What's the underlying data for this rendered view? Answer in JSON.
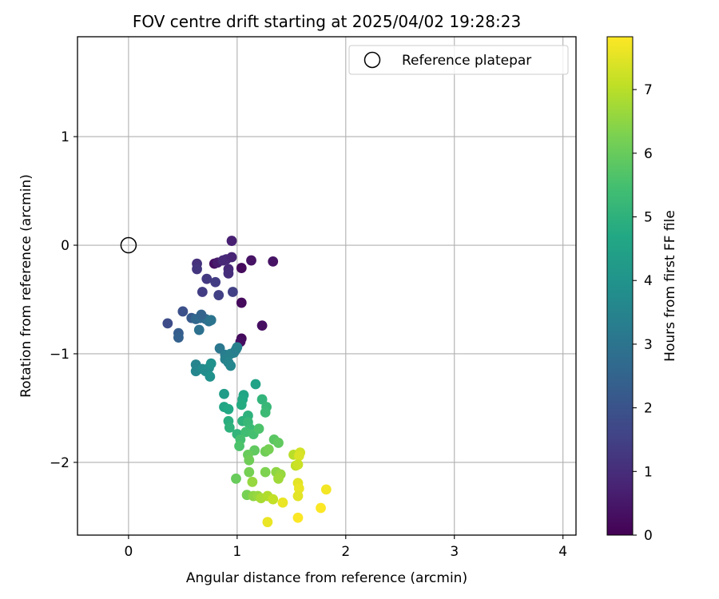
{
  "chart_data": {
    "type": "scatter",
    "title": "FOV centre drift starting at 2025/04/02 19:28:23",
    "xlabel": "Angular distance from reference (arcmin)",
    "ylabel": "Rotation from reference (arcmin)",
    "xlim": [
      -0.47,
      4.12
    ],
    "ylim": [
      -2.67,
      1.92
    ],
    "xticks": [
      0,
      1,
      2,
      3,
      4
    ],
    "yticks": [
      -2,
      -1,
      0,
      1
    ],
    "grid": true,
    "legend": {
      "position": "top-right",
      "entries": [
        "Reference platepar"
      ]
    },
    "reference": {
      "name": "Reference platepar",
      "x": 0.0,
      "y": 0.0,
      "marker": "open-circle"
    },
    "colorbar": {
      "label": "Hours from first FF file",
      "colormap": "viridis",
      "range": [
        0,
        7.83
      ],
      "ticks": [
        0,
        1,
        2,
        3,
        4,
        5,
        6,
        7
      ]
    },
    "points": [
      {
        "x": 0.95,
        "y": 0.04,
        "h": 0.7
      },
      {
        "x": 0.79,
        "y": -0.17,
        "h": 0.3
      },
      {
        "x": 0.82,
        "y": -0.16,
        "h": 0.6
      },
      {
        "x": 0.87,
        "y": -0.14,
        "h": 0.9
      },
      {
        "x": 0.9,
        "y": -0.13,
        "h": 0.9
      },
      {
        "x": 0.95,
        "y": -0.11,
        "h": 0.8
      },
      {
        "x": 1.13,
        "y": -0.14,
        "h": 0.4
      },
      {
        "x": 1.33,
        "y": -0.15,
        "h": 0.4
      },
      {
        "x": 1.04,
        "y": -0.21,
        "h": 0.2
      },
      {
        "x": 0.92,
        "y": -0.22,
        "h": 0.9
      },
      {
        "x": 0.92,
        "y": -0.26,
        "h": 1.0
      },
      {
        "x": 0.63,
        "y": -0.17,
        "h": 1.1
      },
      {
        "x": 0.63,
        "y": -0.22,
        "h": 1.2
      },
      {
        "x": 0.72,
        "y": -0.31,
        "h": 1.3
      },
      {
        "x": 0.8,
        "y": -0.34,
        "h": 1.4
      },
      {
        "x": 0.68,
        "y": -0.43,
        "h": 1.4
      },
      {
        "x": 0.83,
        "y": -0.46,
        "h": 1.5
      },
      {
        "x": 0.96,
        "y": -0.43,
        "h": 1.5
      },
      {
        "x": 1.04,
        "y": -0.53,
        "h": 0.2
      },
      {
        "x": 1.23,
        "y": -0.74,
        "h": 0.3
      },
      {
        "x": 1.04,
        "y": -0.86,
        "h": 0.2
      },
      {
        "x": 1.03,
        "y": -0.89,
        "h": 0.3
      },
      {
        "x": 0.36,
        "y": -0.72,
        "h": 1.8
      },
      {
        "x": 0.5,
        "y": -0.61,
        "h": 1.9
      },
      {
        "x": 0.58,
        "y": -0.67,
        "h": 2.2
      },
      {
        "x": 0.62,
        "y": -0.68,
        "h": 2.6
      },
      {
        "x": 0.66,
        "y": -0.67,
        "h": 2.7
      },
      {
        "x": 0.71,
        "y": -0.68,
        "h": 2.8
      },
      {
        "x": 0.74,
        "y": -0.7,
        "h": 2.9
      },
      {
        "x": 0.76,
        "y": -0.69,
        "h": 3.0
      },
      {
        "x": 0.67,
        "y": -0.64,
        "h": 2.5
      },
      {
        "x": 0.46,
        "y": -0.81,
        "h": 2.3
      },
      {
        "x": 0.46,
        "y": -0.85,
        "h": 2.4
      },
      {
        "x": 0.65,
        "y": -0.78,
        "h": 2.9
      },
      {
        "x": 0.84,
        "y": -0.95,
        "h": 3.1
      },
      {
        "x": 0.89,
        "y": -1.01,
        "h": 3.3
      },
      {
        "x": 0.89,
        "y": -1.05,
        "h": 3.4
      },
      {
        "x": 0.94,
        "y": -1.0,
        "h": 3.4
      },
      {
        "x": 0.97,
        "y": -0.99,
        "h": 3.4
      },
      {
        "x": 0.99,
        "y": -0.96,
        "h": 3.3
      },
      {
        "x": 1.0,
        "y": -0.94,
        "h": 3.4
      },
      {
        "x": 0.92,
        "y": -1.08,
        "h": 3.5
      },
      {
        "x": 0.94,
        "y": -1.11,
        "h": 3.6
      },
      {
        "x": 0.62,
        "y": -1.1,
        "h": 3.5
      },
      {
        "x": 0.62,
        "y": -1.16,
        "h": 3.6
      },
      {
        "x": 0.68,
        "y": -1.14,
        "h": 3.7
      },
      {
        "x": 0.71,
        "y": -1.16,
        "h": 3.8
      },
      {
        "x": 0.74,
        "y": -1.13,
        "h": 3.8
      },
      {
        "x": 0.76,
        "y": -1.09,
        "h": 3.9
      },
      {
        "x": 0.75,
        "y": -1.21,
        "h": 3.9
      },
      {
        "x": 0.88,
        "y": -1.37,
        "h": 4.3
      },
      {
        "x": 1.17,
        "y": -1.28,
        "h": 4.5
      },
      {
        "x": 1.06,
        "y": -1.38,
        "h": 4.6
      },
      {
        "x": 1.05,
        "y": -1.42,
        "h": 4.7
      },
      {
        "x": 1.04,
        "y": -1.47,
        "h": 4.8
      },
      {
        "x": 0.88,
        "y": -1.49,
        "h": 4.6
      },
      {
        "x": 0.92,
        "y": -1.51,
        "h": 4.7
      },
      {
        "x": 1.23,
        "y": -1.42,
        "h": 5.1
      },
      {
        "x": 1.27,
        "y": -1.49,
        "h": 5.2
      },
      {
        "x": 1.26,
        "y": -1.54,
        "h": 5.3
      },
      {
        "x": 1.1,
        "y": -1.57,
        "h": 5.0
      },
      {
        "x": 1.05,
        "y": -1.62,
        "h": 5.0
      },
      {
        "x": 0.92,
        "y": -1.62,
        "h": 4.9
      },
      {
        "x": 0.93,
        "y": -1.68,
        "h": 5.0
      },
      {
        "x": 1.0,
        "y": -1.74,
        "h": 5.1
      },
      {
        "x": 1.1,
        "y": -1.63,
        "h": 5.2
      },
      {
        "x": 1.12,
        "y": -1.69,
        "h": 5.3
      },
      {
        "x": 1.08,
        "y": -1.72,
        "h": 5.4
      },
      {
        "x": 1.15,
        "y": -1.74,
        "h": 5.5
      },
      {
        "x": 1.2,
        "y": -1.69,
        "h": 5.6
      },
      {
        "x": 1.03,
        "y": -1.79,
        "h": 5.5
      },
      {
        "x": 1.02,
        "y": -1.85,
        "h": 5.6
      },
      {
        "x": 1.34,
        "y": -1.79,
        "h": 5.8
      },
      {
        "x": 1.38,
        "y": -1.82,
        "h": 5.9
      },
      {
        "x": 1.16,
        "y": -1.89,
        "h": 5.9
      },
      {
        "x": 1.1,
        "y": -1.93,
        "h": 6.0
      },
      {
        "x": 1.26,
        "y": -1.9,
        "h": 6.1
      },
      {
        "x": 1.29,
        "y": -1.88,
        "h": 6.2
      },
      {
        "x": 1.11,
        "y": -1.98,
        "h": 6.1
      },
      {
        "x": 1.52,
        "y": -1.93,
        "h": 7.0
      },
      {
        "x": 1.58,
        "y": -1.91,
        "h": 7.3
      },
      {
        "x": 1.57,
        "y": -1.94,
        "h": 7.4
      },
      {
        "x": 1.54,
        "y": -2.03,
        "h": 7.1
      },
      {
        "x": 1.56,
        "y": -2.02,
        "h": 7.2
      },
      {
        "x": 1.11,
        "y": -2.09,
        "h": 6.2
      },
      {
        "x": 1.26,
        "y": -2.09,
        "h": 6.3
      },
      {
        "x": 1.36,
        "y": -2.09,
        "h": 6.5
      },
      {
        "x": 1.4,
        "y": -2.11,
        "h": 6.6
      },
      {
        "x": 1.38,
        "y": -2.15,
        "h": 6.7
      },
      {
        "x": 0.99,
        "y": -2.15,
        "h": 6.0
      },
      {
        "x": 1.14,
        "y": -2.18,
        "h": 6.6
      },
      {
        "x": 1.56,
        "y": -2.19,
        "h": 7.5
      },
      {
        "x": 1.57,
        "y": -2.24,
        "h": 7.6
      },
      {
        "x": 1.82,
        "y": -2.25,
        "h": 7.7
      },
      {
        "x": 1.09,
        "y": -2.3,
        "h": 6.2
      },
      {
        "x": 1.15,
        "y": -2.31,
        "h": 6.5
      },
      {
        "x": 1.19,
        "y": -2.31,
        "h": 6.6
      },
      {
        "x": 1.22,
        "y": -2.33,
        "h": 6.8
      },
      {
        "x": 1.28,
        "y": -2.31,
        "h": 6.9
      },
      {
        "x": 1.33,
        "y": -2.34,
        "h": 7.1
      },
      {
        "x": 1.42,
        "y": -2.37,
        "h": 7.6
      },
      {
        "x": 1.56,
        "y": -2.31,
        "h": 7.5
      },
      {
        "x": 1.77,
        "y": -2.42,
        "h": 7.8
      },
      {
        "x": 1.28,
        "y": -2.55,
        "h": 7.6
      },
      {
        "x": 1.56,
        "y": -2.51,
        "h": 7.8
      }
    ]
  }
}
